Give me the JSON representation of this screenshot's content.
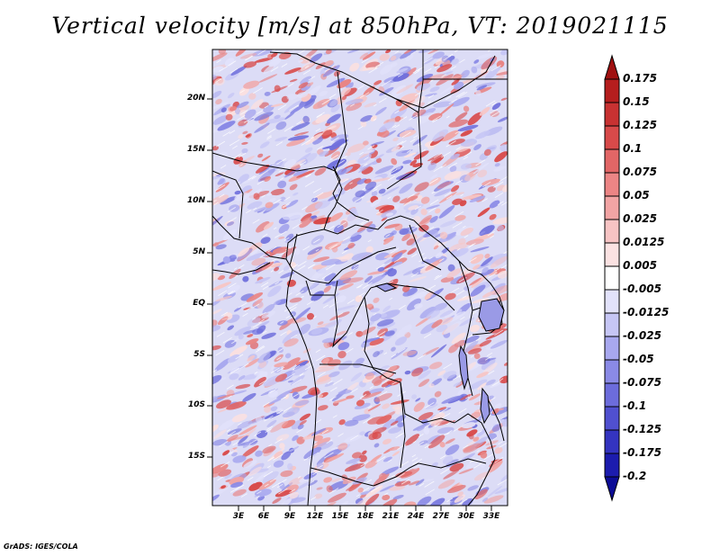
{
  "title": "Vertical velocity [m/s] at 850hPa, VT: 2019021115",
  "credit": "GrADS: IGES/COLA",
  "map": {
    "region": "Central Africa",
    "projection": "latlon"
  },
  "axes": {
    "y_ticks": [
      "20N",
      "15N",
      "10N",
      "5N",
      "EQ",
      "5S",
      "10S",
      "15S"
    ],
    "x_ticks": [
      "3E",
      "6E",
      "9E",
      "12E",
      "15E",
      "18E",
      "21E",
      "24E",
      "27E",
      "30E",
      "33E"
    ]
  },
  "colorbar": {
    "labels": [
      "0.175",
      "0.15",
      "0.125",
      "0.1",
      "0.075",
      "0.05",
      "0.025",
      "0.0125",
      "0.005",
      "-0.005",
      "-0.0125",
      "-0.025",
      "-0.05",
      "-0.075",
      "-0.1",
      "-0.125",
      "-0.175",
      "-0.2"
    ],
    "colors": [
      "#a01010",
      "#b51e1e",
      "#c83232",
      "#d84a4a",
      "#e26666",
      "#ec8585",
      "#f2a4a4",
      "#f7c4c4",
      "#fbe2e2",
      "#ffffff",
      "#e2e2fb",
      "#c6c6f5",
      "#a8a8ef",
      "#8a8ae6",
      "#6c6cdc",
      "#5050d0",
      "#3434c0",
      "#1c1cae",
      "#0c0c96"
    ]
  }
}
